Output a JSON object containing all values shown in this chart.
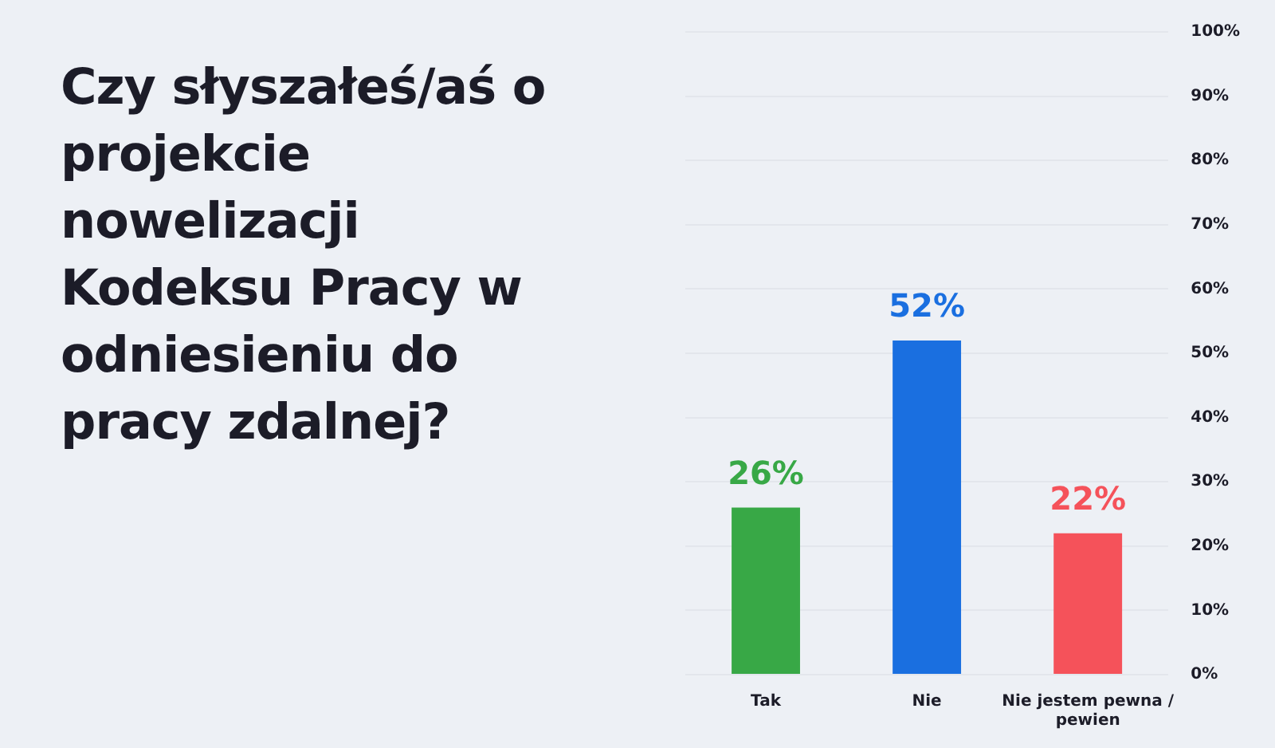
{
  "chart_data": {
    "type": "bar",
    "title": "Czy słyszałeś/aś o projekcie nowelizacji Kodeksu Pracy w odniesieniu do pracy zdalnej?",
    "categories": [
      "Tak",
      "Nie",
      "Nie jestem pewna / pewien"
    ],
    "values": [
      26,
      52,
      22
    ],
    "colors": [
      "#38a846",
      "#1a6fe0",
      "#f5525a"
    ],
    "value_labels": [
      "26%",
      "52%",
      "22%"
    ],
    "ylim": [
      0,
      100
    ],
    "yticks": [
      {
        "value": 0,
        "label": "0%"
      },
      {
        "value": 10,
        "label": "10%"
      },
      {
        "value": 20,
        "label": "20%"
      },
      {
        "value": 30,
        "label": "30%"
      },
      {
        "value": 40,
        "label": "40%"
      },
      {
        "value": 50,
        "label": "50%"
      },
      {
        "value": 60,
        "label": "60%"
      },
      {
        "value": 70,
        "label": "70%"
      },
      {
        "value": 80,
        "label": "80%"
      },
      {
        "value": 90,
        "label": "90%"
      },
      {
        "value": 100,
        "label": "100%"
      }
    ],
    "grid": "y"
  }
}
